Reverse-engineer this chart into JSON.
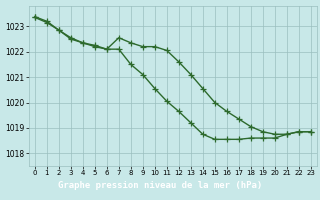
{
  "x": [
    0,
    1,
    2,
    3,
    4,
    5,
    6,
    7,
    8,
    9,
    10,
    11,
    12,
    13,
    14,
    15,
    16,
    17,
    18,
    19,
    20,
    21,
    22,
    23
  ],
  "line1_upper": [
    1023.35,
    1023.15,
    1022.85,
    1022.55,
    1022.35,
    1022.25,
    1022.1,
    1022.55,
    1022.35,
    1022.2,
    1022.2,
    1022.05,
    1021.6,
    1021.1,
    1020.55,
    1020.0,
    1019.65,
    1019.35,
    1019.05,
    1018.85,
    1018.75,
    1018.75,
    1018.85
  ],
  "line2_lower": [
    1023.4,
    1023.2,
    1022.85,
    1022.5,
    1022.35,
    1022.2,
    1022.1,
    1022.1,
    1021.5,
    1021.1,
    1020.55,
    1019.65,
    1019.2,
    1018.75,
    1018.55,
    1018.55,
    1018.55,
    1018.6,
    1018.75,
    1018.8
  ],
  "line_color": "#2d6a2d",
  "marker": "+",
  "markersize": 4,
  "bg_color": "#c8e8e8",
  "grid_color": "#9bbfbf",
  "xlabel": "Graphe pression niveau de la mer (hPa)",
  "xlabel_bg": "#2d6a2d",
  "xlabel_color": "#ffffff",
  "ylim": [
    1017.5,
    1023.8
  ],
  "yticks": [
    1018,
    1019,
    1020,
    1021,
    1022,
    1023
  ],
  "xticks": [
    0,
    1,
    2,
    3,
    4,
    5,
    6,
    7,
    8,
    9,
    10,
    11,
    12,
    13,
    14,
    15,
    16,
    17,
    18,
    19,
    20,
    21,
    22,
    23
  ],
  "linewidth": 1.0
}
